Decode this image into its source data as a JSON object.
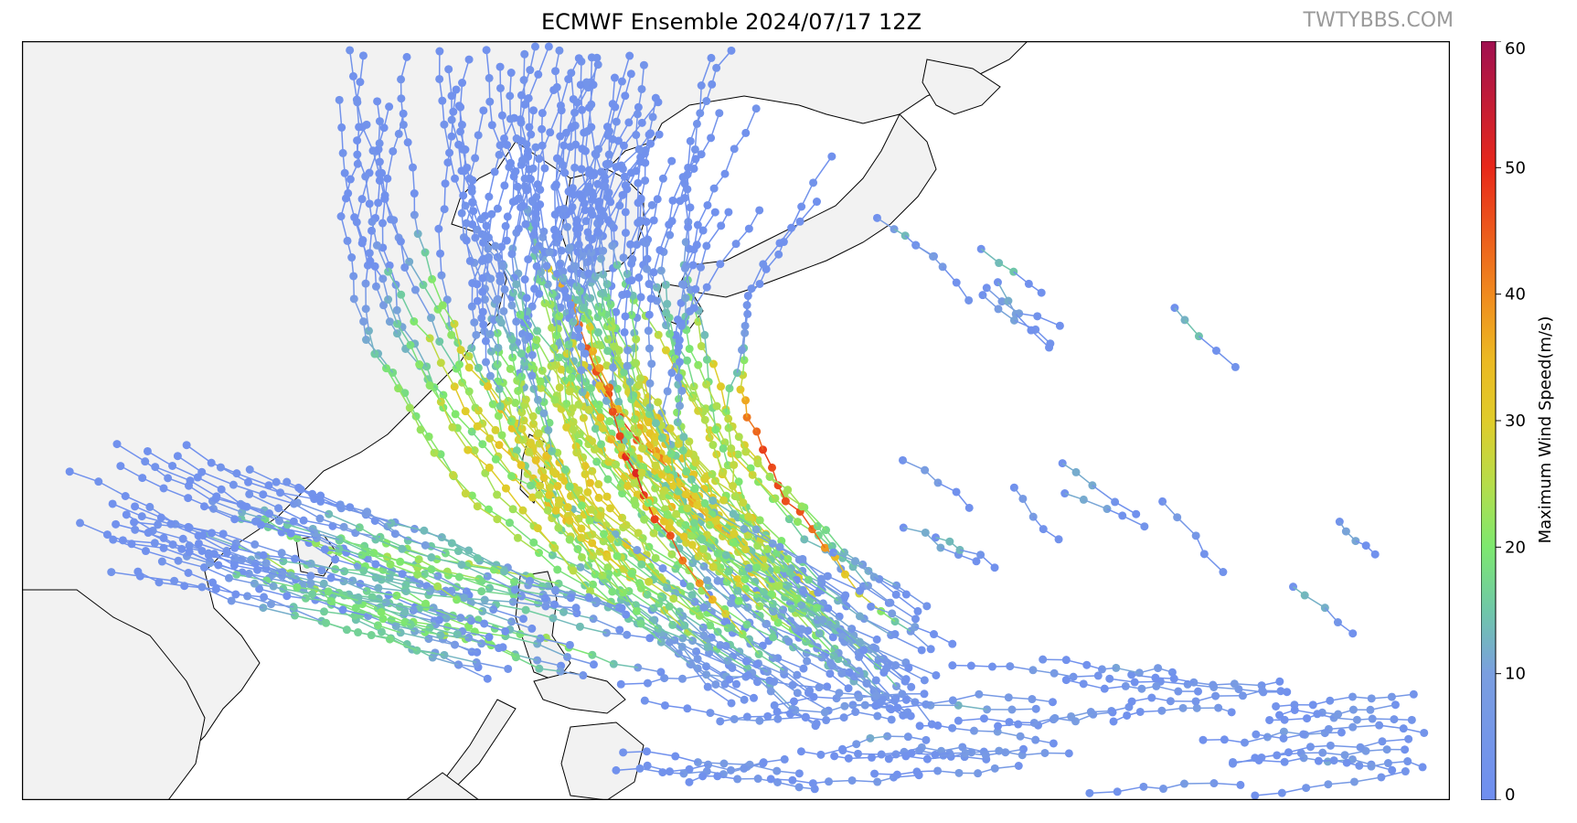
{
  "figure": {
    "title": "ECMWF Ensemble 2024/07/17 12Z",
    "watermark": "TWTYBBS.COM"
  },
  "colorbar": {
    "label": "Maximum Wind Speed(m/s)",
    "ticks": [
      "0",
      "10",
      "20",
      "30",
      "40",
      "50",
      "60"
    ],
    "range": [
      0,
      60
    ],
    "stops": [
      {
        "v": 0,
        "c": "#6f8ef0"
      },
      {
        "v": 10,
        "c": "#7a9ee0"
      },
      {
        "v": 15,
        "c": "#6fc7a8"
      },
      {
        "v": 20,
        "c": "#7de86f"
      },
      {
        "v": 25,
        "c": "#b6dd4a"
      },
      {
        "v": 30,
        "c": "#e0cc2a"
      },
      {
        "v": 35,
        "c": "#ecb822"
      },
      {
        "v": 40,
        "c": "#f08a1e"
      },
      {
        "v": 50,
        "c": "#e8281a"
      },
      {
        "v": 60,
        "c": "#a01050"
      }
    ]
  },
  "map": {
    "land_color": "#f2f2f2",
    "coast_color": "#000000",
    "ocean_color": "#ffffff"
  }
}
